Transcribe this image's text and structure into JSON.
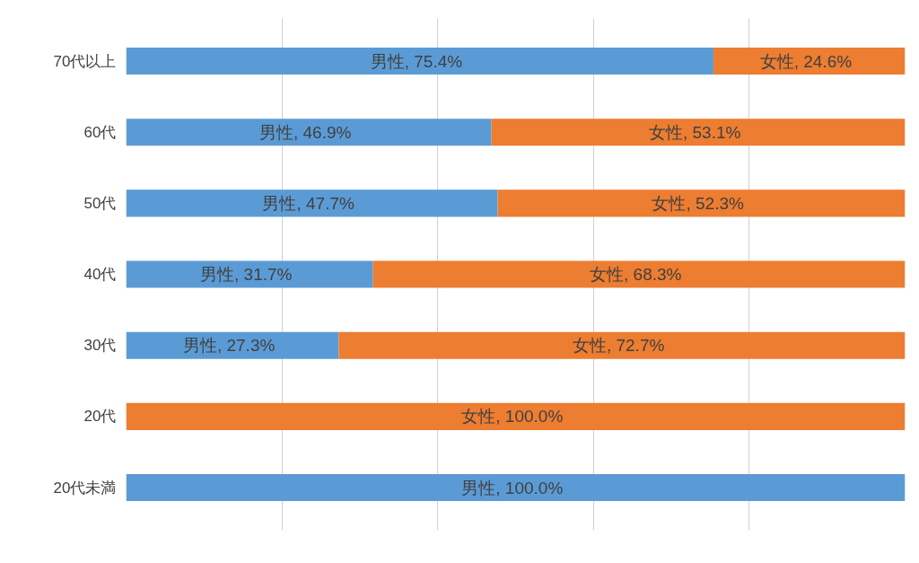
{
  "chart_data": {
    "type": "bar",
    "orientation": "horizontal",
    "stacked": true,
    "categories": [
      "70代以上",
      "60代",
      "50代",
      "40代",
      "30代",
      "20代",
      "20代未満"
    ],
    "series": [
      {
        "name": "男性",
        "color": "#5b9bd5",
        "values": [
          75.4,
          46.9,
          47.7,
          31.7,
          27.3,
          0,
          100.0
        ],
        "value_labels": [
          ", 75.4%",
          ", 46.9%",
          ", 47.7%",
          ", 31.7%",
          ", 27.3%",
          null,
          ", 100.0%"
        ]
      },
      {
        "name": "女性",
        "color": "#ed7d31",
        "values": [
          24.6,
          53.1,
          52.3,
          68.3,
          72.7,
          100.0,
          0
        ],
        "value_labels": [
          ", 24.6%",
          ", 53.1%",
          ", 52.3%",
          ", 68.3%",
          ", 72.7%",
          ", 100.0%",
          null
        ]
      }
    ],
    "grid": "x",
    "legend": false,
    "tick_labels": "y"
  }
}
